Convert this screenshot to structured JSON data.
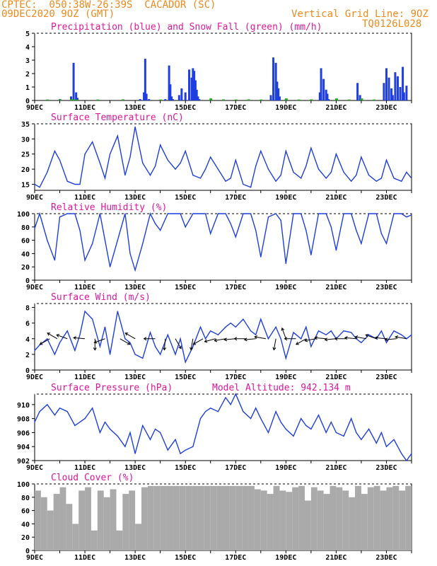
{
  "header": {
    "line1": "CPTEC:  050:38W-26:39S  CACADOR (SC)",
    "line2": "09DEC2020 9OZ (GMT)",
    "grid_note": "Vertical Grid Line: 9OZ",
    "code": "TQ0126L028"
  },
  "colors": {
    "header": "#f08a1c",
    "title": "#e0189a",
    "line": "#1f3fe0",
    "snow": "#22aa22",
    "cloud": "#aaaaaa"
  },
  "x_ticks": [
    "9DEC",
    "11DEC",
    "13DEC",
    "15DEC",
    "17DEC",
    "19DEC",
    "21DEC",
    "23DEC"
  ],
  "chart_data": [
    {
      "type": "bar",
      "title": "Precipitation (blue) and Snow Fall (green) (mm/h)",
      "ylim": [
        0,
        5
      ],
      "yticks": [
        0,
        1,
        2,
        3,
        4,
        5
      ],
      "x_days": [
        9.0,
        9.5,
        10.0,
        10.45,
        10.55,
        10.65,
        10.7,
        11.0,
        11.5,
        12.0,
        12.5,
        13.0,
        13.2,
        13.35,
        13.4,
        13.45,
        13.55,
        14.0,
        14.2,
        14.35,
        14.4,
        14.45,
        14.5,
        14.75,
        14.85,
        15.0,
        15.15,
        15.25,
        15.3,
        15.35,
        15.4,
        15.45,
        15.5,
        15.55,
        16.0,
        16.5,
        17.0,
        17.5,
        18.0,
        18.4,
        18.5,
        18.6,
        18.65,
        18.7,
        18.75,
        19.0,
        19.5,
        20.0,
        20.35,
        20.4,
        20.5,
        20.6,
        20.65,
        20.7,
        21.0,
        21.5,
        21.85,
        21.95,
        22.0,
        22.5,
        22.9,
        23.0,
        23.1,
        23.2,
        23.25,
        23.35,
        23.45,
        23.55,
        23.65,
        23.7,
        23.8,
        23.9
      ],
      "values": [
        0.0,
        0.05,
        0.1,
        0.3,
        2.8,
        0.6,
        0.2,
        0.0,
        0.0,
        0.0,
        0.0,
        0.0,
        0.1,
        0.6,
        3.1,
        0.5,
        0.1,
        0.0,
        0.1,
        2.6,
        1.2,
        0.3,
        0.1,
        0.4,
        0.9,
        0.6,
        2.3,
        1.7,
        2.4,
        2.2,
        1.5,
        0.8,
        0.3,
        0.1,
        0.0,
        0.0,
        0.0,
        0.0,
        0.0,
        0.4,
        3.2,
        2.8,
        1.4,
        0.9,
        0.3,
        0.1,
        0.0,
        0.0,
        0.6,
        2.4,
        1.6,
        0.8,
        0.5,
        0.1,
        0.0,
        0.0,
        1.3,
        0.4,
        0.0,
        0.0,
        1.3,
        2.4,
        1.7,
        0.9,
        0.4,
        2.1,
        1.8,
        1.0,
        2.5,
        0.6,
        1.1,
        0.0
      ],
      "snow": [
        0.0,
        0.02,
        0.03,
        0.04,
        0.03,
        0.02,
        0.01,
        0.0,
        0.02,
        0.0,
        0.03,
        0.0,
        0.0,
        0.0,
        0.0,
        0.0,
        0.0,
        0.02,
        0.0,
        0.0,
        0.0,
        0.0,
        0.0,
        0.0,
        0.0,
        0.0,
        0.0,
        0.0,
        0.0,
        0.0,
        0.0,
        0.0,
        0.0,
        0.0,
        0.1,
        0.03,
        0.02,
        0.03,
        0.02,
        0.0,
        0.0,
        0.0,
        0.0,
        0.0,
        0.0,
        0.1,
        0.02,
        0.03,
        0.0,
        0.0,
        0.0,
        0.0,
        0.0,
        0.0,
        0.1,
        0.02,
        0.0,
        0.0,
        0.1,
        0.02,
        0.0,
        0.0,
        0.0,
        0.0,
        0.0,
        0.0,
        0.0,
        0.0,
        0.0,
        0.0,
        0.0,
        0.0
      ]
    },
    {
      "type": "line",
      "title": "Surface Temperature (nC)",
      "ylim": [
        13,
        35
      ],
      "yticks": [
        15,
        20,
        25,
        30,
        35
      ],
      "x_days": [
        9.0,
        9.2,
        9.5,
        9.8,
        10.0,
        10.3,
        10.6,
        10.8,
        11.0,
        11.3,
        11.6,
        11.8,
        12.0,
        12.3,
        12.6,
        12.8,
        13.0,
        13.3,
        13.6,
        13.8,
        14.0,
        14.3,
        14.6,
        14.8,
        15.0,
        15.3,
        15.6,
        15.8,
        16.0,
        16.3,
        16.6,
        16.8,
        17.0,
        17.3,
        17.6,
        17.8,
        18.0,
        18.3,
        18.6,
        18.8,
        19.0,
        19.3,
        19.6,
        19.8,
        20.0,
        20.3,
        20.6,
        20.8,
        21.0,
        21.3,
        21.6,
        21.8,
        22.0,
        22.3,
        22.6,
        22.8,
        23.0,
        23.3,
        23.6,
        23.8,
        24.0
      ],
      "values": [
        15,
        14,
        19,
        26,
        23,
        16,
        15,
        15,
        25,
        29,
        22,
        17,
        25,
        31,
        18,
        24,
        34,
        22,
        18,
        21,
        28,
        23,
        20,
        22,
        26,
        18,
        17,
        20,
        24,
        20,
        16,
        17,
        23,
        15,
        14,
        21,
        26,
        20,
        16,
        18,
        26,
        19,
        17,
        21,
        27,
        20,
        17,
        19,
        25,
        19,
        16,
        18,
        24,
        18,
        16,
        17,
        23,
        17,
        16,
        19,
        17
      ],
      "xlabel": "",
      "ylabel": ""
    },
    {
      "type": "line",
      "title": "Relative Humidity (%)",
      "ylim": [
        0,
        100
      ],
      "yticks": [
        0,
        20,
        40,
        60,
        80,
        100
      ],
      "x_days": [
        9.0,
        9.2,
        9.5,
        9.8,
        10.0,
        10.3,
        10.6,
        10.8,
        11.0,
        11.3,
        11.6,
        11.8,
        12.0,
        12.3,
        12.6,
        12.8,
        13.0,
        13.3,
        13.6,
        13.8,
        14.0,
        14.3,
        14.6,
        14.8,
        15.0,
        15.3,
        15.6,
        15.8,
        16.0,
        16.3,
        16.6,
        16.8,
        17.0,
        17.3,
        17.6,
        17.8,
        18.0,
        18.3,
        18.6,
        18.8,
        19.0,
        19.3,
        19.6,
        19.8,
        20.0,
        20.3,
        20.6,
        20.8,
        21.0,
        21.3,
        21.6,
        21.8,
        22.0,
        22.3,
        22.6,
        22.8,
        23.0,
        23.3,
        23.6,
        23.8,
        24.0
      ],
      "values": [
        78,
        100,
        60,
        30,
        95,
        100,
        100,
        75,
        30,
        55,
        100,
        60,
        20,
        60,
        100,
        40,
        15,
        55,
        100,
        85,
        75,
        100,
        100,
        100,
        80,
        100,
        100,
        100,
        70,
        100,
        100,
        85,
        65,
        100,
        100,
        75,
        35,
        95,
        100,
        90,
        25,
        100,
        100,
        75,
        38,
        100,
        100,
        80,
        45,
        100,
        100,
        75,
        55,
        100,
        100,
        70,
        55,
        100,
        100,
        95,
        98
      ],
      "xlabel": "",
      "ylabel": ""
    },
    {
      "type": "line",
      "title": "Surface Wind (m/s)",
      "ylim": [
        0,
        8.5
      ],
      "yticks": [
        0,
        2,
        4,
        6,
        8
      ],
      "x_days": [
        9.0,
        9.2,
        9.5,
        9.8,
        10.0,
        10.3,
        10.6,
        10.8,
        11.0,
        11.3,
        11.6,
        11.8,
        12.0,
        12.3,
        12.6,
        12.8,
        13.0,
        13.3,
        13.6,
        13.8,
        14.0,
        14.3,
        14.6,
        14.8,
        15.0,
        15.3,
        15.6,
        15.8,
        16.0,
        16.3,
        16.6,
        16.8,
        17.0,
        17.3,
        17.6,
        17.8,
        18.0,
        18.3,
        18.6,
        18.8,
        19.0,
        19.3,
        19.6,
        19.8,
        20.0,
        20.3,
        20.6,
        20.8,
        21.0,
        21.3,
        21.6,
        21.8,
        22.0,
        22.3,
        22.6,
        22.8,
        23.0,
        23.3,
        23.6,
        23.8,
        24.0
      ],
      "values": [
        2.5,
        3.2,
        4.0,
        2.0,
        3.5,
        5.0,
        2.5,
        4.5,
        7.5,
        6.5,
        3.0,
        5.5,
        2.0,
        7.5,
        4.0,
        3.5,
        2.0,
        1.5,
        4.8,
        3.0,
        2.0,
        4.5,
        2.0,
        4.0,
        1.0,
        3.0,
        5.5,
        4.0,
        5.0,
        4.5,
        5.5,
        6.0,
        5.5,
        6.5,
        5.0,
        4.5,
        6.5,
        4.0,
        5.5,
        4.0,
        1.5,
        4.8,
        4.0,
        5.5,
        3.0,
        5.0,
        4.5,
        5.0,
        4.0,
        5.0,
        4.8,
        4.0,
        3.5,
        4.5,
        4.0,
        5.0,
        3.5,
        5.0,
        4.5,
        4.0,
        4.5
      ],
      "arrows_days": [
        9.6,
        9.9,
        10.3,
        11.0,
        11.4,
        11.8,
        12.4,
        13.0,
        13.8,
        14.2,
        14.6,
        15.3,
        15.7,
        16.2,
        16.6,
        17.0,
        17.4,
        17.8,
        18.2,
        18.6,
        19.0,
        19.4,
        19.8,
        20.2,
        20.6,
        21.0,
        21.4,
        21.8,
        22.2,
        22.6,
        23.0,
        23.4,
        23.8
      ],
      "arrows_dir_deg": [
        150,
        210,
        200,
        185,
        90,
        160,
        30,
        210,
        180,
        95,
        60,
        100,
        150,
        165,
        170,
        175,
        180,
        175,
        190,
        100,
        250,
        180,
        150,
        170,
        185,
        175,
        180,
        185,
        190,
        200,
        185,
        175,
        190
      ],
      "xlabel": "",
      "ylabel": ""
    },
    {
      "type": "line",
      "title": "Surface Pressure (hPa)",
      "subtitle": "Model Altitude: 942.134 m",
      "ylim": [
        902,
        911.5
      ],
      "yticks": [
        902,
        904,
        906,
        908,
        910
      ],
      "x_days": [
        9.0,
        9.2,
        9.5,
        9.8,
        10.0,
        10.3,
        10.6,
        10.8,
        11.0,
        11.3,
        11.6,
        11.8,
        12.0,
        12.3,
        12.6,
        12.8,
        13.0,
        13.3,
        13.6,
        13.8,
        14.0,
        14.3,
        14.6,
        14.8,
        15.0,
        15.3,
        15.6,
        15.8,
        16.0,
        16.3,
        16.6,
        16.8,
        17.0,
        17.3,
        17.6,
        17.8,
        18.0,
        18.3,
        18.6,
        18.8,
        19.0,
        19.3,
        19.6,
        19.8,
        20.0,
        20.3,
        20.6,
        20.8,
        21.0,
        21.3,
        21.6,
        21.8,
        22.0,
        22.3,
        22.6,
        22.8,
        23.0,
        23.3,
        23.6,
        23.8,
        24.0
      ],
      "values": [
        907.5,
        909,
        910,
        908.5,
        909.5,
        909.0,
        907.0,
        907.5,
        908.0,
        909.5,
        906.0,
        907.5,
        906.5,
        905.5,
        904.0,
        906.0,
        903.0,
        907.0,
        905.0,
        906.5,
        906.0,
        903.5,
        905.0,
        903.0,
        903.5,
        904.0,
        908.0,
        909.0,
        909.5,
        909.0,
        911.0,
        910.0,
        911.5,
        909.0,
        908.0,
        909.5,
        908.0,
        906.0,
        909.0,
        907.5,
        906.5,
        905.5,
        908.0,
        907.0,
        906.5,
        908.5,
        906.0,
        907.5,
        906.0,
        905.5,
        908.0,
        906.0,
        905.0,
        906.5,
        904.5,
        906.0,
        904.0,
        905.0,
        903.0,
        902.0,
        903.0
      ],
      "xlabel": "",
      "ylabel": ""
    },
    {
      "type": "bar",
      "title": "Cloud Cover (%)",
      "ylim": [
        0,
        100
      ],
      "yticks": [
        0,
        20,
        40,
        60,
        80,
        100
      ],
      "x_days": [
        9.0,
        9.25,
        9.5,
        9.75,
        10.0,
        10.25,
        10.5,
        10.75,
        11.0,
        11.25,
        11.5,
        11.75,
        12.0,
        12.25,
        12.5,
        12.75,
        13.0,
        13.25,
        13.5,
        13.75,
        14.0,
        14.25,
        14.5,
        14.75,
        15.0,
        15.25,
        15.5,
        15.75,
        16.0,
        16.25,
        16.5,
        16.75,
        17.0,
        17.25,
        17.5,
        17.75,
        18.0,
        18.25,
        18.5,
        18.75,
        19.0,
        19.25,
        19.5,
        19.75,
        20.0,
        20.25,
        20.5,
        20.75,
        21.0,
        21.25,
        21.5,
        21.75,
        22.0,
        22.25,
        22.5,
        22.75,
        23.0,
        23.25,
        23.5,
        23.75
      ],
      "values": [
        90,
        80,
        60,
        85,
        95,
        70,
        40,
        90,
        95,
        30,
        90,
        80,
        92,
        30,
        85,
        90,
        40,
        95,
        97,
        97,
        97,
        97,
        97,
        97,
        97,
        97,
        97,
        97,
        97,
        97,
        97,
        97,
        97,
        97,
        97,
        92,
        90,
        85,
        97,
        90,
        88,
        95,
        97,
        75,
        95,
        90,
        85,
        97,
        95,
        90,
        80,
        97,
        85,
        95,
        97,
        90,
        95,
        97,
        90,
        97
      ],
      "xlabel": "",
      "ylabel": ""
    }
  ]
}
